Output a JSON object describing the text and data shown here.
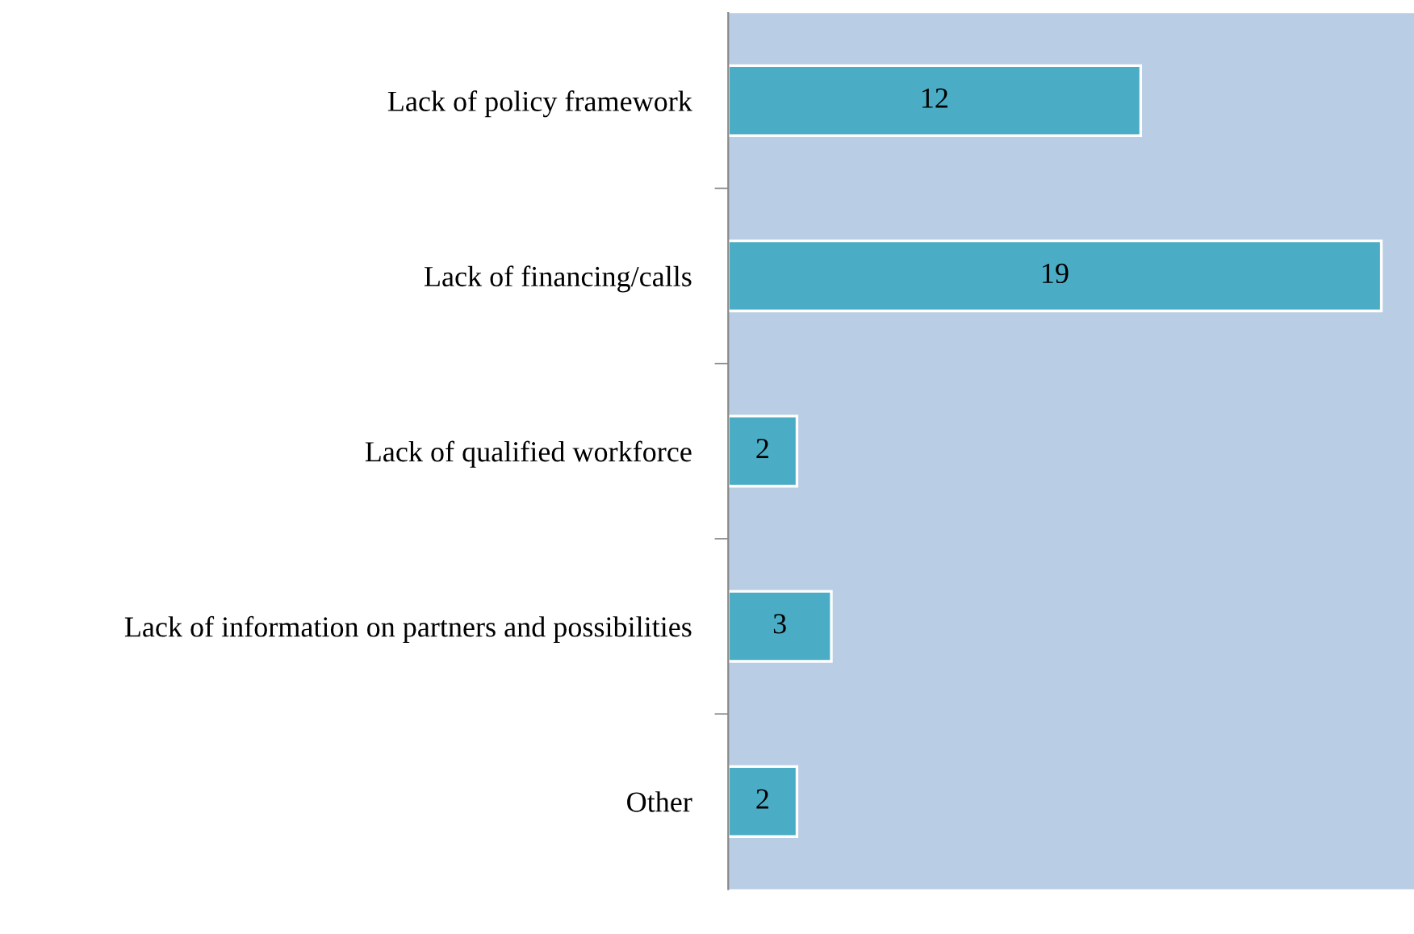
{
  "chart_data": {
    "type": "bar",
    "orientation": "horizontal",
    "categories": [
      "Lack of policy framework",
      "Lack of financing/calls",
      "Lack of qualified workforce",
      "Lack of information on partners and possibilities",
      "Other"
    ],
    "values": [
      12,
      19,
      2,
      3,
      2
    ],
    "color": "#4bacc6",
    "data_labels": true,
    "grid": false,
    "legend": false
  }
}
